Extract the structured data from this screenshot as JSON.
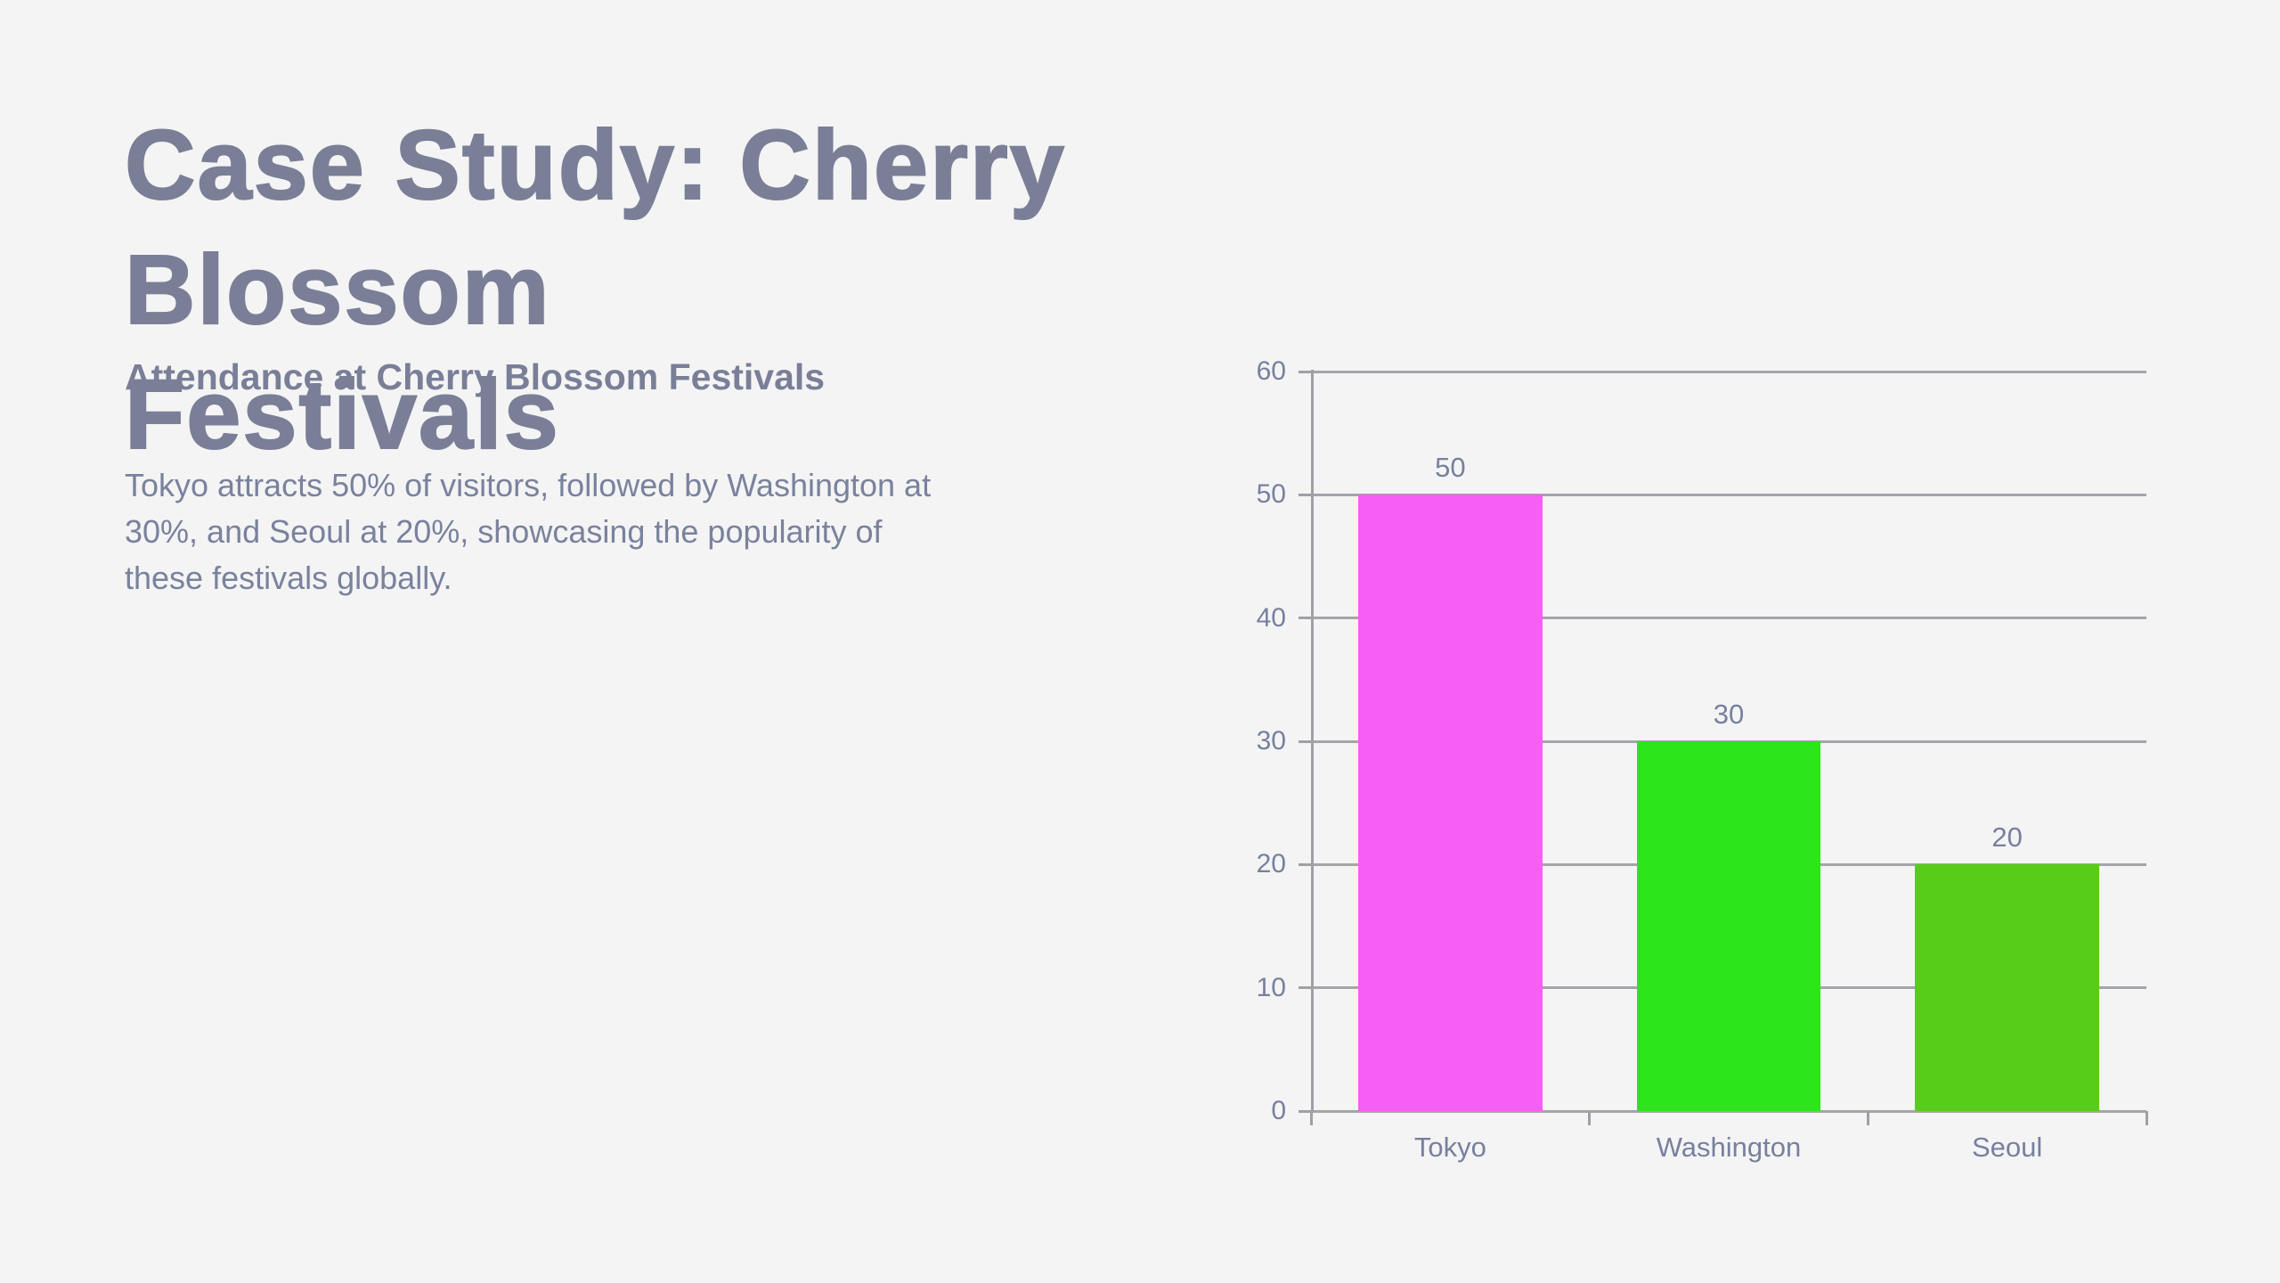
{
  "slide": {
    "title": "Case Study: Cherry Blossom\nFestivals",
    "subtitle": "Attendance at Cherry Blossom Festivals",
    "body": "Tokyo attracts 50% of visitors, followed by Washington at\n30%, and Seoul at 20%, showcasing the popularity of\nthese festivals globally."
  },
  "colors": {
    "background": "#F4F4F5",
    "title_text": "#7A7F97",
    "body_text": "#7A829C",
    "axis_text": "#78809E",
    "grid_line": "#A4A5A9",
    "axis_line": "#9EA0A4"
  },
  "chart_data": {
    "type": "bar",
    "title": "Attendance at Cherry Blossom Festivals",
    "categories": [
      "Tokyo",
      "Washington",
      "Seoul"
    ],
    "values": [
      50,
      30,
      20
    ],
    "data_labels": [
      "50",
      "30",
      "20"
    ],
    "bar_colors": [
      "#F75EF3",
      "#2CE51A",
      "#58CD19"
    ],
    "xlabel": "",
    "ylabel": "",
    "ylim": [
      0,
      60
    ],
    "y_ticks": [
      0,
      10,
      20,
      30,
      40,
      50,
      60
    ],
    "grid": "horizontal-gridlines",
    "legend": "none"
  }
}
